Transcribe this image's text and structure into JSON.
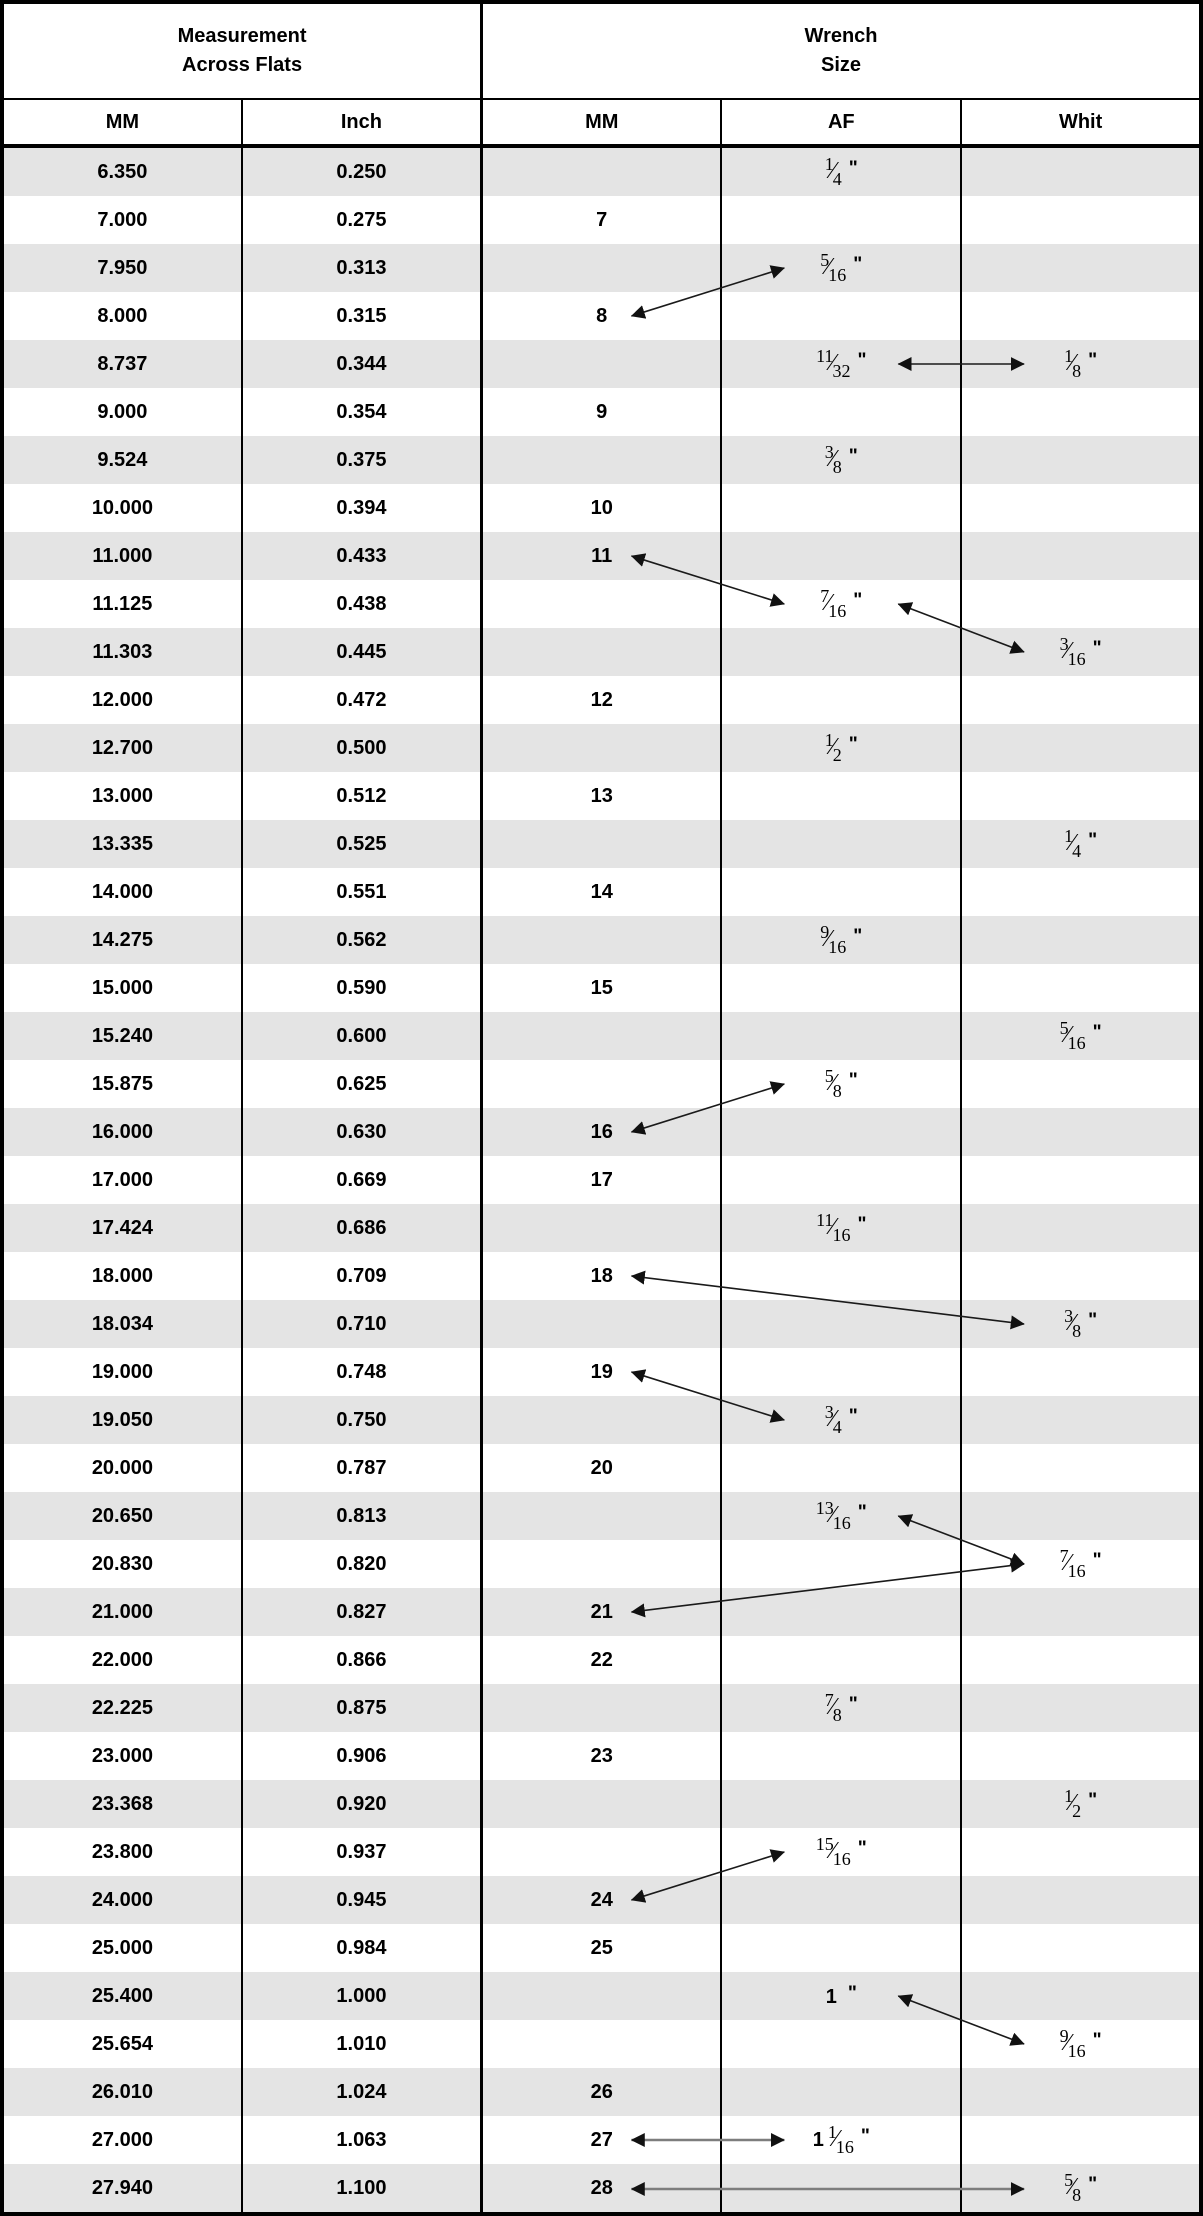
{
  "table": {
    "group1_line1": "Measurement",
    "group1_line2": "Across Flats",
    "group2_line1": "Wrench",
    "group2_line2": "Size",
    "column_headers": [
      "MM",
      "Inch",
      "MM",
      "AF",
      "Whit"
    ],
    "rows": [
      {
        "mm_flats": "6.350",
        "inch_flats": "0.250",
        "mm_wrench": "",
        "af": "1/4\"",
        "whit": ""
      },
      {
        "mm_flats": "7.000",
        "inch_flats": "0.275",
        "mm_wrench": "7",
        "af": "",
        "whit": ""
      },
      {
        "mm_flats": "7.950",
        "inch_flats": "0.313",
        "mm_wrench": "",
        "af": "5/16\"",
        "whit": ""
      },
      {
        "mm_flats": "8.000",
        "inch_flats": "0.315",
        "mm_wrench": "8",
        "af": "",
        "whit": ""
      },
      {
        "mm_flats": "8.737",
        "inch_flats": "0.344",
        "mm_wrench": "",
        "af": "11/32\"",
        "whit": "1/8\""
      },
      {
        "mm_flats": "9.000",
        "inch_flats": "0.354",
        "mm_wrench": "9",
        "af": "",
        "whit": ""
      },
      {
        "mm_flats": "9.524",
        "inch_flats": "0.375",
        "mm_wrench": "",
        "af": "3/8\"",
        "whit": ""
      },
      {
        "mm_flats": "10.000",
        "inch_flats": "0.394",
        "mm_wrench": "10",
        "af": "",
        "whit": ""
      },
      {
        "mm_flats": "11.000",
        "inch_flats": "0.433",
        "mm_wrench": "11",
        "af": "",
        "whit": ""
      },
      {
        "mm_flats": "11.125",
        "inch_flats": "0.438",
        "mm_wrench": "",
        "af": "7/16\"",
        "whit": ""
      },
      {
        "mm_flats": "11.303",
        "inch_flats": "0.445",
        "mm_wrench": "",
        "af": "",
        "whit": "3/16\""
      },
      {
        "mm_flats": "12.000",
        "inch_flats": "0.472",
        "mm_wrench": "12",
        "af": "",
        "whit": ""
      },
      {
        "mm_flats": "12.700",
        "inch_flats": "0.500",
        "mm_wrench": "",
        "af": "1/2\"",
        "whit": ""
      },
      {
        "mm_flats": "13.000",
        "inch_flats": "0.512",
        "mm_wrench": "13",
        "af": "",
        "whit": ""
      },
      {
        "mm_flats": "13.335",
        "inch_flats": "0.525",
        "mm_wrench": "",
        "af": "",
        "whit": "1/4\""
      },
      {
        "mm_flats": "14.000",
        "inch_flats": "0.551",
        "mm_wrench": "14",
        "af": "",
        "whit": ""
      },
      {
        "mm_flats": "14.275",
        "inch_flats": "0.562",
        "mm_wrench": "",
        "af": "9/16\"",
        "whit": ""
      },
      {
        "mm_flats": "15.000",
        "inch_flats": "0.590",
        "mm_wrench": "15",
        "af": "",
        "whit": ""
      },
      {
        "mm_flats": "15.240",
        "inch_flats": "0.600",
        "mm_wrench": "",
        "af": "",
        "whit": "5/16\""
      },
      {
        "mm_flats": "15.875",
        "inch_flats": "0.625",
        "mm_wrench": "",
        "af": "5/8\"",
        "whit": ""
      },
      {
        "mm_flats": "16.000",
        "inch_flats": "0.630",
        "mm_wrench": "16",
        "af": "",
        "whit": ""
      },
      {
        "mm_flats": "17.000",
        "inch_flats": "0.669",
        "mm_wrench": "17",
        "af": "",
        "whit": ""
      },
      {
        "mm_flats": "17.424",
        "inch_flats": "0.686",
        "mm_wrench": "",
        "af": "11/16\"",
        "whit": ""
      },
      {
        "mm_flats": "18.000",
        "inch_flats": "0.709",
        "mm_wrench": "18",
        "af": "",
        "whit": ""
      },
      {
        "mm_flats": "18.034",
        "inch_flats": "0.710",
        "mm_wrench": "",
        "af": "",
        "whit": "3/8\""
      },
      {
        "mm_flats": "19.000",
        "inch_flats": "0.748",
        "mm_wrench": "19",
        "af": "",
        "whit": ""
      },
      {
        "mm_flats": "19.050",
        "inch_flats": "0.750",
        "mm_wrench": "",
        "af": "3/4\"",
        "whit": ""
      },
      {
        "mm_flats": "20.000",
        "inch_flats": "0.787",
        "mm_wrench": "20",
        "af": "",
        "whit": ""
      },
      {
        "mm_flats": "20.650",
        "inch_flats": "0.813",
        "mm_wrench": "",
        "af": "13/16\"",
        "whit": ""
      },
      {
        "mm_flats": "20.830",
        "inch_flats": "0.820",
        "mm_wrench": "",
        "af": "",
        "whit": "7/16\""
      },
      {
        "mm_flats": "21.000",
        "inch_flats": "0.827",
        "mm_wrench": "21",
        "af": "",
        "whit": ""
      },
      {
        "mm_flats": "22.000",
        "inch_flats": "0.866",
        "mm_wrench": "22",
        "af": "",
        "whit": ""
      },
      {
        "mm_flats": "22.225",
        "inch_flats": "0.875",
        "mm_wrench": "",
        "af": "7/8\"",
        "whit": ""
      },
      {
        "mm_flats": "23.000",
        "inch_flats": "0.906",
        "mm_wrench": "23",
        "af": "",
        "whit": ""
      },
      {
        "mm_flats": "23.368",
        "inch_flats": "0.920",
        "mm_wrench": "",
        "af": "",
        "whit": "1/2\""
      },
      {
        "mm_flats": "23.800",
        "inch_flats": "0.937",
        "mm_wrench": "",
        "af": "15/16\"",
        "whit": ""
      },
      {
        "mm_flats": "24.000",
        "inch_flats": "0.945",
        "mm_wrench": "24",
        "af": "",
        "whit": ""
      },
      {
        "mm_flats": "25.000",
        "inch_flats": "0.984",
        "mm_wrench": "25",
        "af": "",
        "whit": ""
      },
      {
        "mm_flats": "25.400",
        "inch_flats": "1.000",
        "mm_wrench": "",
        "af": "1\"",
        "whit": ""
      },
      {
        "mm_flats": "25.654",
        "inch_flats": "1.010",
        "mm_wrench": "",
        "af": "",
        "whit": "9/16\""
      },
      {
        "mm_flats": "26.010",
        "inch_flats": "1.024",
        "mm_wrench": "26",
        "af": "",
        "whit": ""
      },
      {
        "mm_flats": "27.000",
        "inch_flats": "1.063",
        "mm_wrench": "27",
        "af": "1 1/16\"",
        "whit": ""
      },
      {
        "mm_flats": "27.940",
        "inch_flats": "1.100",
        "mm_wrench": "28",
        "af": "",
        "whit": "5/8\""
      }
    ],
    "arrows": [
      {
        "from": {
          "row": 4,
          "col": "mm_wrench",
          "side": "right"
        },
        "to": {
          "row": 3,
          "col": "af",
          "side": "left"
        },
        "muted": false
      },
      {
        "from": {
          "row": 5,
          "col": "af",
          "side": "right"
        },
        "to": {
          "row": 5,
          "col": "whit",
          "side": "left"
        },
        "muted": false
      },
      {
        "from": {
          "row": 9,
          "col": "mm_wrench",
          "side": "right"
        },
        "to": {
          "row": 10,
          "col": "af",
          "side": "left"
        },
        "muted": false
      },
      {
        "from": {
          "row": 10,
          "col": "af",
          "side": "right"
        },
        "to": {
          "row": 11,
          "col": "whit",
          "side": "left"
        },
        "muted": false
      },
      {
        "from": {
          "row": 21,
          "col": "mm_wrench",
          "side": "right"
        },
        "to": {
          "row": 20,
          "col": "af",
          "side": "left"
        },
        "muted": false
      },
      {
        "from": {
          "row": 24,
          "col": "mm_wrench",
          "side": "right"
        },
        "to": {
          "row": 25,
          "col": "whit",
          "side": "left"
        },
        "muted": false
      },
      {
        "from": {
          "row": 26,
          "col": "mm_wrench",
          "side": "right"
        },
        "to": {
          "row": 27,
          "col": "af",
          "side": "left"
        },
        "muted": false
      },
      {
        "from": {
          "row": 29,
          "col": "af",
          "side": "right"
        },
        "to": {
          "row": 30,
          "col": "whit",
          "side": "left"
        },
        "muted": false
      },
      {
        "from": {
          "row": 31,
          "col": "mm_wrench",
          "side": "right"
        },
        "to": {
          "row": 30,
          "col": "whit",
          "side": "left"
        },
        "muted": false
      },
      {
        "from": {
          "row": 37,
          "col": "mm_wrench",
          "side": "right"
        },
        "to": {
          "row": 36,
          "col": "af",
          "side": "left"
        },
        "muted": false
      },
      {
        "from": {
          "row": 39,
          "col": "af",
          "side": "right"
        },
        "to": {
          "row": 40,
          "col": "whit",
          "side": "left"
        },
        "muted": false
      },
      {
        "from": {
          "row": 42,
          "col": "mm_wrench",
          "side": "right"
        },
        "to": {
          "row": 42,
          "col": "af",
          "side": "left"
        },
        "muted": true
      },
      {
        "from": {
          "row": 43,
          "col": "mm_wrench",
          "side": "right"
        },
        "to": {
          "row": 43,
          "col": "whit",
          "side": "left"
        },
        "muted": true
      }
    ]
  },
  "colors": {
    "row_shade": "#e4e4e4",
    "row_plain": "#ffffff",
    "border": "#000000",
    "arrow": "#1a1a1a",
    "arrow_muted": "#7d7d7d",
    "arrow_head": "#111111"
  }
}
